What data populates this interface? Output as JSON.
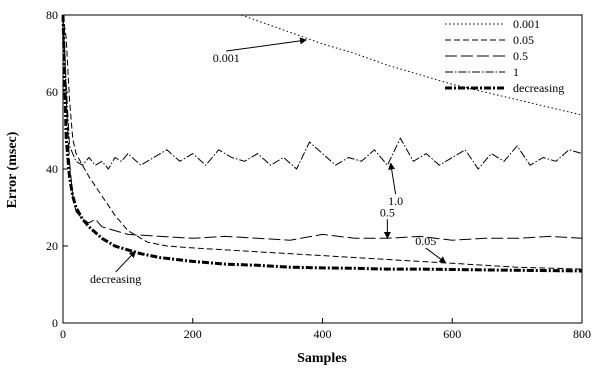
{
  "chart_data": {
    "type": "line",
    "title": "",
    "xlabel": "Samples",
    "ylabel": "Error (msec)",
    "xlim": [
      0,
      800
    ],
    "ylim": [
      0,
      80
    ],
    "xticks": [
      "0",
      "200",
      "400",
      "600",
      "800"
    ],
    "yticks": [
      "0",
      "20",
      "40",
      "60",
      "80"
    ],
    "legend_position": "top-right",
    "grid": false,
    "series": [
      {
        "name": "0.001",
        "style": "dotted",
        "x": [
          275,
          300,
          350,
          400,
          450,
          500,
          550,
          600,
          650,
          700,
          750,
          800
        ],
        "y": [
          80.0,
          78.5,
          75.5,
          72.5,
          70.0,
          67.0,
          64.5,
          62.0,
          60.0,
          58.0,
          56.0,
          54.0
        ]
      },
      {
        "name": "0.05",
        "style": "dashed",
        "x": [
          0,
          5,
          10,
          15,
          20,
          30,
          40,
          60,
          80,
          100,
          130,
          160,
          200,
          300,
          400,
          500,
          600,
          700,
          800
        ],
        "y": [
          80,
          74,
          58,
          48,
          44,
          41,
          38,
          33,
          28,
          24,
          21,
          20,
          19.5,
          18.5,
          17.5,
          16.5,
          15.5,
          14.5,
          14.0
        ]
      },
      {
        "name": "0.5",
        "style": "long-dashed",
        "x": [
          0,
          5,
          10,
          15,
          20,
          30,
          40,
          50,
          60,
          80,
          100,
          150,
          200,
          250,
          300,
          350,
          400,
          450,
          500,
          550,
          600,
          650,
          700,
          750,
          800
        ],
        "y": [
          80,
          58,
          42,
          33,
          29,
          27,
          26,
          27,
          25,
          24,
          23,
          22.5,
          22,
          22.5,
          22,
          21.5,
          23,
          22,
          22,
          22.5,
          21.5,
          22,
          22,
          22.5,
          22
        ]
      },
      {
        "name": "1",
        "style": "dash-dot",
        "x": [
          0,
          5,
          10,
          20,
          30,
          40,
          50,
          60,
          70,
          80,
          90,
          100,
          120,
          140,
          160,
          180,
          200,
          220,
          240,
          260,
          280,
          300,
          320,
          340,
          360,
          380,
          400,
          420,
          440,
          460,
          480,
          500,
          520,
          540,
          560,
          580,
          600,
          620,
          640,
          660,
          680,
          700,
          720,
          740,
          760,
          780,
          800
        ],
        "y": [
          80,
          62,
          46,
          42,
          41,
          43,
          41,
          42,
          40,
          43,
          42,
          44,
          41,
          43,
          45,
          42,
          44,
          41,
          45,
          43,
          42,
          44,
          41,
          43,
          40,
          47,
          44,
          41,
          43,
          42,
          45,
          41,
          48,
          42,
          44,
          41,
          43,
          45,
          40,
          44,
          42,
          46,
          41,
          43,
          42,
          45,
          44
        ]
      },
      {
        "name": "decreasing",
        "style": "thick-dash-dot",
        "x": [
          0,
          5,
          10,
          15,
          20,
          30,
          40,
          50,
          60,
          80,
          100,
          120,
          150,
          200,
          250,
          300,
          350,
          400,
          450,
          500,
          550,
          600,
          650,
          700,
          750,
          800
        ],
        "y": [
          80,
          48,
          38,
          33,
          30,
          27,
          25,
          23.5,
          22,
          20,
          19,
          18,
          17,
          16,
          15.3,
          15,
          14.5,
          14.3,
          14.2,
          14,
          14,
          13.9,
          13.8,
          13.7,
          13.6,
          13.5
        ]
      }
    ],
    "annotations": [
      {
        "text": "0.001",
        "series": "0.001",
        "x": 375,
        "y": 73.5
      },
      {
        "text": "1.0",
        "series": "1",
        "x": 505,
        "y": 41.5
      },
      {
        "text": "0.5",
        "series": "0.5",
        "x": 500,
        "y": 22
      },
      {
        "text": "0.05",
        "series": "0.05",
        "x": 590,
        "y": 15.6
      },
      {
        "text": "decreasing",
        "series": "decreasing",
        "x": 112,
        "y": 18.7
      }
    ]
  }
}
